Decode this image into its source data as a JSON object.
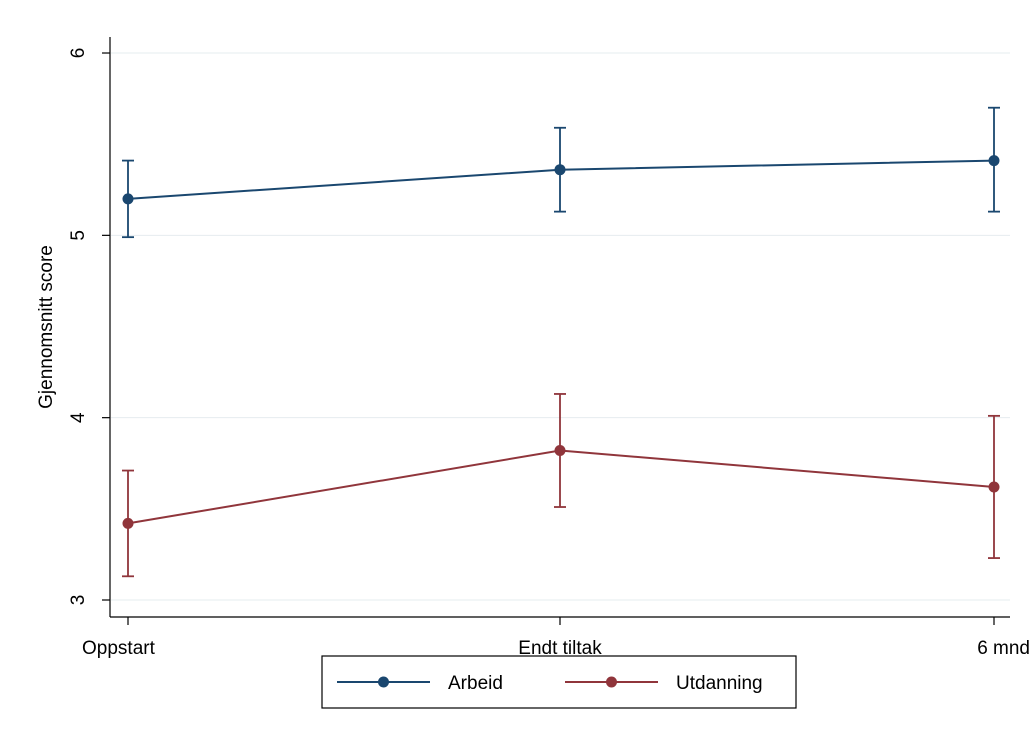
{
  "chart_data": {
    "type": "line",
    "title": "",
    "xlabel": "",
    "ylabel": "Gjennomsnitt score",
    "categories": [
      "Oppstart",
      "Endt tiltak",
      "6 mnd"
    ],
    "yticks": [
      3,
      4,
      5,
      6
    ],
    "ylim": [
      2.9,
      6.1
    ],
    "grid": true,
    "error_bars": true,
    "legend_position": "bottom",
    "series": [
      {
        "name": "Arbeid",
        "color": "#1a476f",
        "values": [
          5.2,
          5.36,
          5.41
        ],
        "lower": [
          4.99,
          5.13,
          5.13
        ],
        "upper": [
          5.41,
          5.59,
          5.7
        ]
      },
      {
        "name": "Utdanning",
        "color": "#90353b",
        "values": [
          3.42,
          3.82,
          3.62
        ],
        "lower": [
          3.13,
          3.51,
          3.23
        ],
        "upper": [
          3.71,
          4.13,
          4.01
        ]
      }
    ]
  }
}
